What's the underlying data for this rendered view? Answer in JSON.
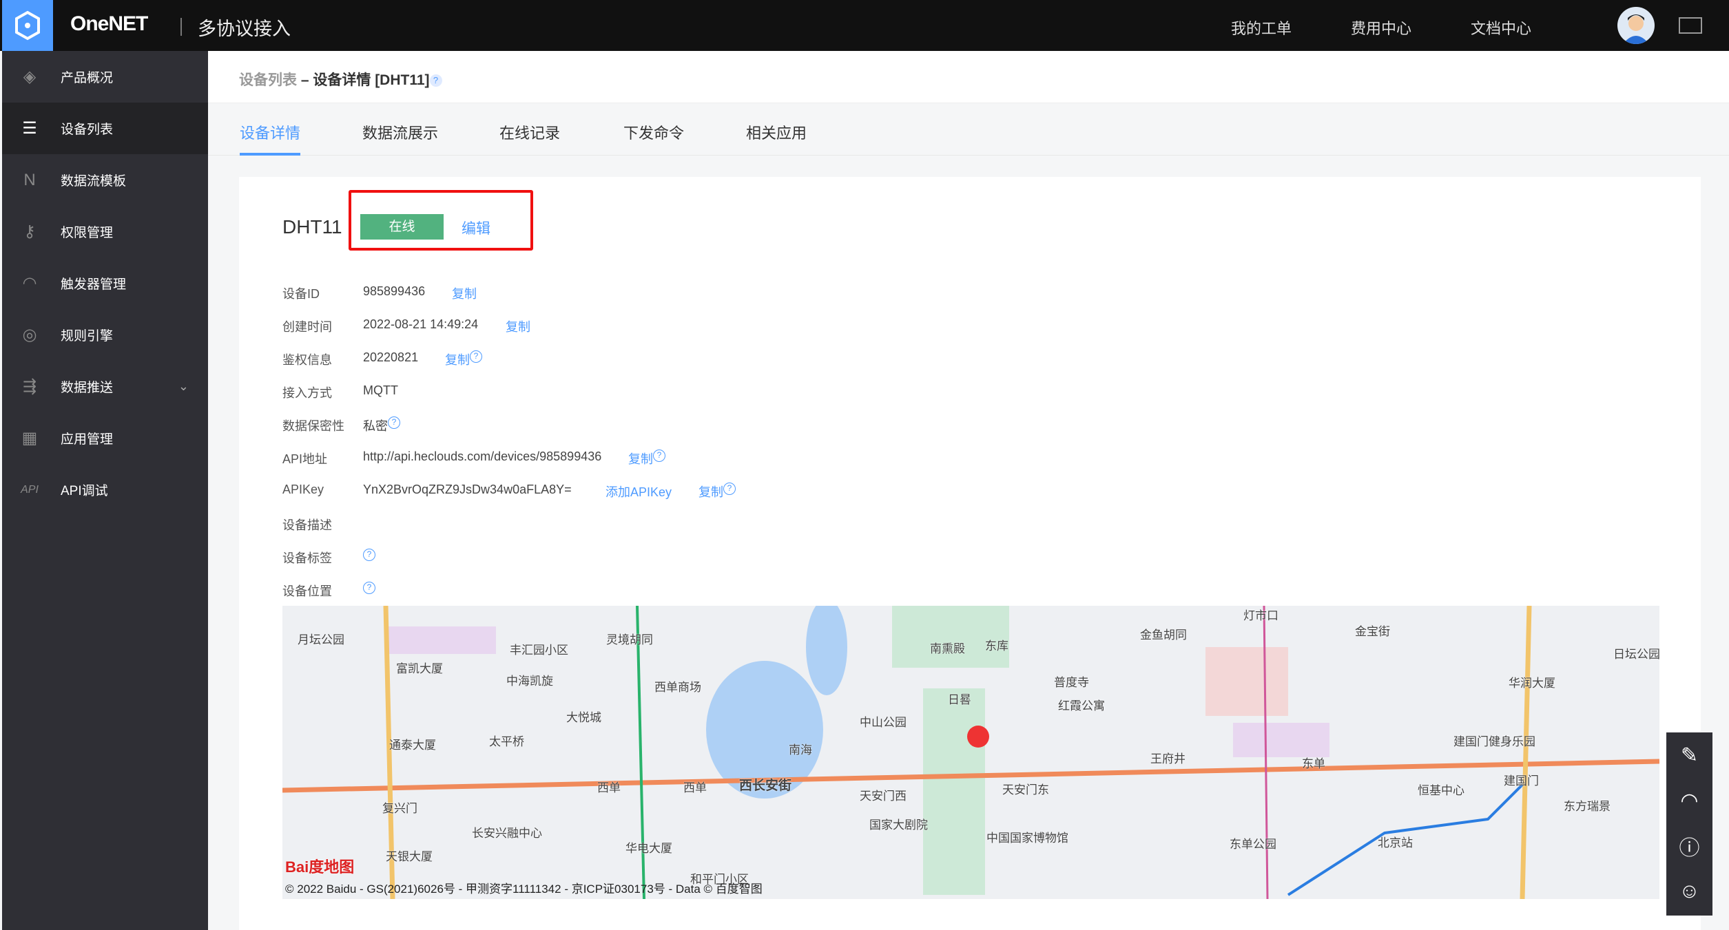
{
  "header": {
    "brand": "OneNET",
    "product": "多协议接入",
    "nav": [
      "我的工单",
      "费用中心",
      "文档中心"
    ]
  },
  "sidebar": {
    "items": [
      {
        "label": "产品概况",
        "icon": "cube-icon"
      },
      {
        "label": "设备列表",
        "icon": "list-icon",
        "active": true
      },
      {
        "label": "数据流模板",
        "icon": "flow-icon"
      },
      {
        "label": "权限管理",
        "icon": "key-icon"
      },
      {
        "label": "触发器管理",
        "icon": "trigger-icon"
      },
      {
        "label": "规则引擎",
        "icon": "rule-icon"
      },
      {
        "label": "数据推送",
        "icon": "push-icon"
      },
      {
        "label": "应用管理",
        "icon": "grid-icon"
      },
      {
        "label": "API调试",
        "icon": "api-icon"
      }
    ]
  },
  "breadcrumb": {
    "parent": "设备列表",
    "sep": " – ",
    "current": "设备详情 [DHT11]"
  },
  "tabs": [
    "设备详情",
    "数据流展示",
    "在线记录",
    "下发命令",
    "相关应用"
  ],
  "device": {
    "name": "DHT11",
    "status": "在线",
    "edit": "编辑",
    "status_color": "#52b27f"
  },
  "fields": {
    "id": {
      "label": "设备ID",
      "value": "985899436",
      "copy": "复制"
    },
    "created": {
      "label": "创建时间",
      "value": "2022-08-21 14:49:24",
      "copy": "复制"
    },
    "auth": {
      "label": "鉴权信息",
      "value": "20220821",
      "copy": "复制"
    },
    "protocol": {
      "label": "接入方式",
      "value": "MQTT"
    },
    "privacy": {
      "label": "数据保密性",
      "value": "私密"
    },
    "api": {
      "label": "API地址",
      "value": "http://api.heclouds.com/devices/985899436",
      "copy": "复制"
    },
    "apikey": {
      "label": "APIKey",
      "value": "YnX2BvrOqZRZ9JsDw34w0aFLA8Y=",
      "add": "添加APIKey",
      "copy": "复制"
    },
    "desc": {
      "label": "设备描述"
    },
    "tags": {
      "label": "设备标签"
    },
    "location": {
      "label": "设备位置"
    }
  },
  "map": {
    "labels": [
      "月坛公园",
      "丰汇园小区",
      "灵境胡同",
      "富凯大厦",
      "中海凯旋",
      "西单商场",
      "大悦城",
      "通泰大厦",
      "太平桥",
      "西单",
      "西单",
      "西长安街",
      "南海",
      "中山公园",
      "南熏殿",
      "东库",
      "日晷",
      "普度寺",
      "红霞公寓",
      "金鱼胡同",
      "灯市口",
      "金宝街",
      "日坛公园",
      "华润大厦",
      "建国门健身乐园",
      "王府井",
      "东单",
      "天安门西",
      "天安门东",
      "国家大剧院",
      "中国国家博物馆",
      "东单公园",
      "恒基中心",
      "建国门",
      "东方瑞景",
      "北京站",
      "复兴门",
      "长安兴融中心",
      "天银大厦",
      "华电大厦",
      "和平门小区"
    ],
    "copyright": "© 2022 Baidu - GS(2021)6026号 - 甲测资字11111342 - 京ICP证030173号 - Data © 百度智图",
    "logo": "Bai度地图"
  },
  "tools": [
    "edit-icon",
    "headset-icon",
    "help-icon",
    "user-service-icon"
  ]
}
